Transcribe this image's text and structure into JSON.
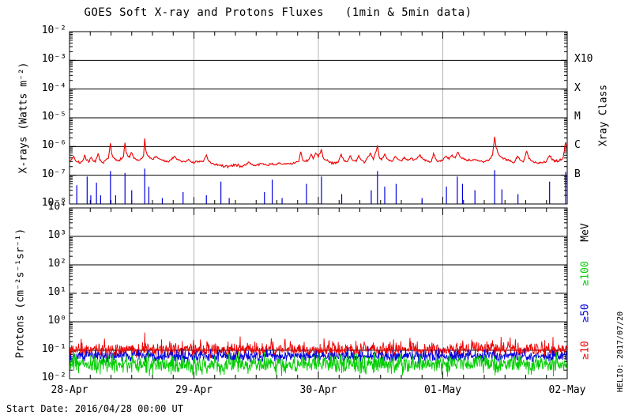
{
  "title": "GOES Soft X-ray and Protons Fluxes   (1min & 5min data)",
  "footer": {
    "start_date": "Start Date: 2016/04/28 00:00 UT"
  },
  "credit": "HELIO: 2017/07/20",
  "colors": {
    "red": "#ee0000",
    "blue": "#0000dd",
    "green": "#00cc00",
    "grid_gray": "#b4b4b4",
    "frame": "#000000",
    "background": "#ffffff"
  },
  "chart_data": [
    {
      "id": "xray-panel",
      "type": "line",
      "ylabel": "X-rays (Watts m⁻²)",
      "ylim_exp": [
        -8,
        -2
      ],
      "y_ticks": [
        {
          "exp": -2,
          "label": "10⁻²"
        },
        {
          "exp": -3,
          "label": "10⁻³"
        },
        {
          "exp": -4,
          "label": "10⁻⁴"
        },
        {
          "exp": -5,
          "label": "10⁻⁵"
        },
        {
          "exp": -6,
          "label": "10⁻⁶"
        },
        {
          "exp": -7,
          "label": "10⁻⁷"
        },
        {
          "exp": -8,
          "label": "10⁻⁸"
        }
      ],
      "x_hours_range": [
        0,
        96
      ],
      "x_minor_step_hours": 4,
      "grid_vlines_hours": [
        24,
        48,
        72
      ],
      "hlines_exp": [
        -3,
        -4,
        -5,
        -6,
        -7
      ],
      "hlines_dashed_exp": [],
      "right_title": "Xray Class",
      "right_labels": [
        {
          "text": "X10",
          "exp": -3,
          "color": "frame"
        },
        {
          "text": "X",
          "exp": -4,
          "color": "frame"
        },
        {
          "text": "M",
          "exp": -5,
          "color": "frame"
        },
        {
          "text": "C",
          "exp": -6,
          "color": "frame"
        },
        {
          "text": "B",
          "exp": -7,
          "color": "frame"
        }
      ],
      "series": [
        {
          "name": "xray-long-1-8A",
          "color": "red",
          "render": "curve",
          "scale": 1e-07,
          "interp_step_min": 8,
          "jitter_sigma_log": 0.022,
          "seed": 7,
          "points": [
            [
              0,
              3.2
            ],
            [
              0.4,
              3.6
            ],
            [
              0.8,
              4.6
            ],
            [
              1.1,
              3.4
            ],
            [
              1.5,
              2.9
            ],
            [
              2,
              2.7
            ],
            [
              2.5,
              3.1
            ],
            [
              2.9,
              5.0
            ],
            [
              3.2,
              3.4
            ],
            [
              3.7,
              2.8
            ],
            [
              4.2,
              4.2
            ],
            [
              4.6,
              3.1
            ],
            [
              5,
              2.9
            ],
            [
              5.5,
              5.6
            ],
            [
              5.8,
              3.4
            ],
            [
              6.3,
              2.8
            ],
            [
              6.9,
              3.3
            ],
            [
              7.5,
              3.9
            ],
            [
              7.9,
              13.0
            ],
            [
              8.1,
              6.0
            ],
            [
              8.4,
              4.2
            ],
            [
              8.9,
              3.4
            ],
            [
              9.4,
              3.1
            ],
            [
              10,
              3.6
            ],
            [
              10.4,
              4.4
            ],
            [
              10.7,
              13.5
            ],
            [
              10.9,
              6.5
            ],
            [
              11.2,
              4.8
            ],
            [
              11.6,
              4.2
            ],
            [
              11.9,
              6.2
            ],
            [
              12.3,
              4.4
            ],
            [
              12.8,
              3.6
            ],
            [
              13.4,
              3.3
            ],
            [
              13.9,
              3.8
            ],
            [
              14.3,
              5.0
            ],
            [
              14.5,
              19.0
            ],
            [
              14.7,
              7.5
            ],
            [
              15.1,
              4.8
            ],
            [
              15.6,
              4.0
            ],
            [
              16.2,
              3.6
            ],
            [
              16.7,
              4.5
            ],
            [
              17.1,
              3.9
            ],
            [
              17.8,
              3.4
            ],
            [
              18.5,
              3.1
            ],
            [
              19.2,
              3.0
            ],
            [
              19.7,
              3.5
            ],
            [
              20.3,
              4.6
            ],
            [
              20.8,
              3.6
            ],
            [
              21.5,
              3.1
            ],
            [
              22.2,
              3.0
            ],
            [
              22.7,
              3.4
            ],
            [
              23.5,
              2.9
            ],
            [
              24.2,
              2.8
            ],
            [
              25,
              2.9
            ],
            [
              25.8,
              3.0
            ],
            [
              26.4,
              5.1
            ],
            [
              26.8,
              3.2
            ],
            [
              27.5,
              2.6
            ],
            [
              28.3,
              2.3
            ],
            [
              29.1,
              2.2
            ],
            [
              30,
              2.0
            ],
            [
              31,
              2.1
            ],
            [
              32,
              2.3
            ],
            [
              33,
              2.1
            ],
            [
              34,
              2.2
            ],
            [
              34.6,
              2.9
            ],
            [
              35.2,
              2.3
            ],
            [
              36,
              2.2
            ],
            [
              36.8,
              2.6
            ],
            [
              37.5,
              2.3
            ],
            [
              38.3,
              2.2
            ],
            [
              39,
              2.5
            ],
            [
              39.6,
              2.3
            ],
            [
              40.4,
              2.6
            ],
            [
              41.2,
              2.4
            ],
            [
              42,
              2.6
            ],
            [
              42.8,
              2.4
            ],
            [
              43.5,
              2.7
            ],
            [
              44.2,
              3.0
            ],
            [
              44.6,
              6.6
            ],
            [
              45,
              3.3
            ],
            [
              45.6,
              3.1
            ],
            [
              46.2,
              3.6
            ],
            [
              46.6,
              5.4
            ],
            [
              47,
              3.7
            ],
            [
              47.5,
              5.9
            ],
            [
              48,
              4.3
            ],
            [
              48.6,
              7.8
            ],
            [
              49,
              3.9
            ],
            [
              49.6,
              3.3
            ],
            [
              50.3,
              2.9
            ],
            [
              51,
              2.7
            ],
            [
              51.8,
              2.8
            ],
            [
              52.4,
              5.4
            ],
            [
              52.9,
              3.3
            ],
            [
              53.6,
              3.0
            ],
            [
              54.1,
              4.7
            ],
            [
              54.6,
              3.3
            ],
            [
              55.3,
              3.0
            ],
            [
              55.8,
              4.9
            ],
            [
              56.3,
              3.3
            ],
            [
              57,
              2.9
            ],
            [
              57.6,
              4.5
            ],
            [
              58.1,
              5.7
            ],
            [
              58.6,
              3.5
            ],
            [
              59.4,
              11.0
            ],
            [
              59.7,
              4.5
            ],
            [
              60.2,
              3.4
            ],
            [
              60.8,
              5.5
            ],
            [
              61.2,
              3.8
            ],
            [
              61.8,
              3.3
            ],
            [
              62.3,
              3.1
            ],
            [
              62.8,
              4.5
            ],
            [
              63.4,
              3.5
            ],
            [
              64.1,
              3.1
            ],
            [
              64.6,
              4.3
            ],
            [
              65.2,
              3.3
            ],
            [
              65.8,
              3.9
            ],
            [
              66.4,
              3.4
            ],
            [
              67,
              3.7
            ],
            [
              67.6,
              5.2
            ],
            [
              68.2,
              3.6
            ],
            [
              69,
              3.2
            ],
            [
              69.8,
              3.0
            ],
            [
              70.2,
              5.8
            ],
            [
              70.7,
              3.6
            ],
            [
              71.2,
              3.1
            ],
            [
              72,
              3.3
            ],
            [
              72.6,
              4.6
            ],
            [
              73.2,
              3.6
            ],
            [
              73.8,
              5.1
            ],
            [
              74.4,
              4.0
            ],
            [
              74.9,
              6.3
            ],
            [
              75.4,
              4.4
            ],
            [
              76,
              3.8
            ],
            [
              76.8,
              3.4
            ],
            [
              77.5,
              3.2
            ],
            [
              78.2,
              3.6
            ],
            [
              79,
              3.2
            ],
            [
              79.6,
              3.0
            ],
            [
              80.3,
              3.2
            ],
            [
              81,
              3.6
            ],
            [
              81.6,
              5.0
            ],
            [
              82.0,
              22.0
            ],
            [
              82.3,
              9.0
            ],
            [
              82.7,
              5.6
            ],
            [
              83.2,
              4.4
            ],
            [
              83.8,
              3.8
            ],
            [
              84.5,
              3.3
            ],
            [
              85.2,
              3.0
            ],
            [
              85.8,
              2.8
            ],
            [
              86.4,
              4.6
            ],
            [
              86.9,
              3.3
            ],
            [
              87.5,
              2.9
            ],
            [
              88.2,
              6.8
            ],
            [
              88.6,
              3.8
            ],
            [
              89.3,
              3.1
            ],
            [
              90,
              2.8
            ],
            [
              90.7,
              2.6
            ],
            [
              91.4,
              2.8
            ],
            [
              92,
              3.1
            ],
            [
              92.6,
              4.8
            ],
            [
              93.1,
              3.4
            ],
            [
              93.8,
              3.0
            ],
            [
              94.5,
              3.3
            ],
            [
              95.2,
              4.0
            ],
            [
              95.7,
              14.0
            ],
            [
              96,
              9.0
            ]
          ]
        },
        {
          "name": "xray-short-0.5-4A",
          "color": "blue",
          "render": "spikes",
          "scale": 1e-08,
          "baseline": 1.0,
          "spikes": [
            [
              1.4,
              4.5
            ],
            [
              3.4,
              9
            ],
            [
              4.1,
              2
            ],
            [
              5.2,
              5.5
            ],
            [
              6.0,
              2
            ],
            [
              7.9,
              14
            ],
            [
              8.9,
              2
            ],
            [
              10.7,
              12
            ],
            [
              12.0,
              3
            ],
            [
              14.5,
              17
            ],
            [
              15.3,
              4
            ],
            [
              17.9,
              1.6
            ],
            [
              21.9,
              2.6
            ],
            [
              26.4,
              2
            ],
            [
              29.2,
              6
            ],
            [
              30.8,
              1.6
            ],
            [
              37.6,
              2.6
            ],
            [
              39.1,
              7
            ],
            [
              41,
              1.6
            ],
            [
              45.7,
              5
            ],
            [
              48.6,
              9
            ],
            [
              52.5,
              2.2
            ],
            [
              58.2,
              3
            ],
            [
              59.4,
              14
            ],
            [
              60.8,
              4
            ],
            [
              63,
              5
            ],
            [
              68,
              1.6
            ],
            [
              72.7,
              4
            ],
            [
              74.8,
              9
            ],
            [
              75.8,
              5
            ],
            [
              78.2,
              3
            ],
            [
              82.0,
              15
            ],
            [
              83.4,
              3.2
            ],
            [
              86.5,
              2.2
            ],
            [
              92.6,
              6
            ],
            [
              95.7,
              13
            ]
          ]
        }
      ]
    },
    {
      "id": "proton-panel",
      "type": "line",
      "ylabel": "Protons (cm⁻²s⁻¹sr⁻¹)",
      "ylim_exp": [
        -2,
        4
      ],
      "y_ticks": [
        {
          "exp": 4,
          "label": "10⁴"
        },
        {
          "exp": 3,
          "label": "10³"
        },
        {
          "exp": 2,
          "label": "10²"
        },
        {
          "exp": 1,
          "label": "10¹"
        },
        {
          "exp": 0,
          "label": "10⁰"
        },
        {
          "exp": -1,
          "label": "10⁻¹"
        },
        {
          "exp": -2,
          "label": "10⁻²"
        }
      ],
      "x_hours_range": [
        0,
        96
      ],
      "x_tick_hours": [
        0,
        24,
        48,
        72,
        96
      ],
      "x_tick_labels": [
        "28-Apr",
        "29-Apr",
        "30-Apr",
        "01-May",
        "02-May"
      ],
      "x_minor_step_hours": 4,
      "grid_vlines_hours": [
        24,
        48,
        72
      ],
      "hlines_exp": [
        3,
        2,
        0,
        -1
      ],
      "hlines_dashed_exp": [
        1
      ],
      "right_title": "MeV",
      "right_labels": [
        {
          "text": "MeV",
          "exp": 3.15,
          "color": "frame"
        },
        {
          "text": "≥100",
          "exp": 1.7,
          "color": "green"
        },
        {
          "text": "≥50",
          "exp": 0.3,
          "color": "blue"
        },
        {
          "text": "≥10",
          "exp": -1.0,
          "color": "red"
        }
      ],
      "series": [
        {
          "name": "protons-ge10MeV",
          "color": "red",
          "render": "noise",
          "noise": {
            "median": 0.105,
            "sigma_log": 0.12,
            "spike_prob": 0.05,
            "spike_log_max": 0.45,
            "seed": 11,
            "step_min": 5
          }
        },
        {
          "name": "protons-ge50MeV",
          "color": "blue",
          "render": "noise",
          "noise": {
            "median": 0.063,
            "sigma_log": 0.1,
            "spike_prob": 0.02,
            "spike_log_max": 0.22,
            "seed": 22,
            "step_min": 5
          }
        },
        {
          "name": "protons-ge100MeV",
          "color": "green",
          "render": "noise",
          "noise": {
            "median": 0.032,
            "sigma_log": 0.16,
            "spike_prob": 0.02,
            "spike_log_max": 0.25,
            "seed": 33,
            "step_min": 5
          }
        }
      ]
    }
  ]
}
